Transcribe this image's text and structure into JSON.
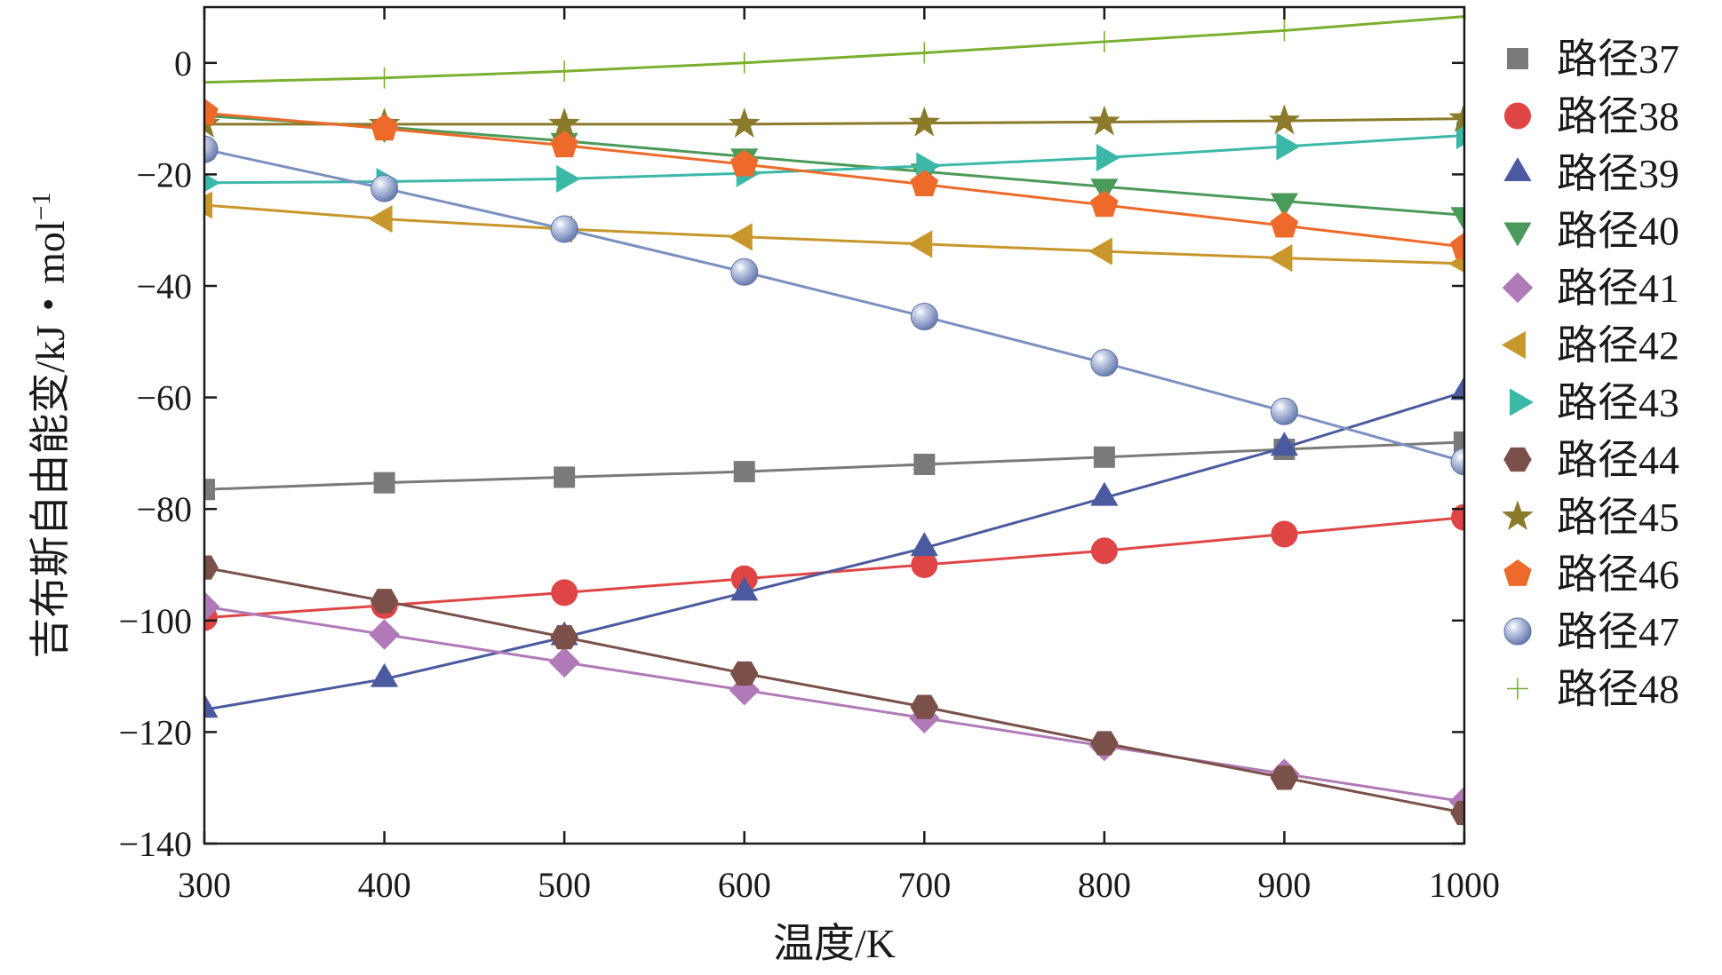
{
  "chart_data": {
    "type": "line",
    "title": "",
    "xlabel": "温度/K",
    "ylabel": "吉布斯自由能变/kJ・mol",
    "ylabel_superscript": "−1",
    "xlim": [
      300,
      1000
    ],
    "ylim": [
      -140,
      10
    ],
    "xticks": [
      300,
      400,
      500,
      600,
      700,
      800,
      900,
      1000
    ],
    "yticks": [
      0,
      -20,
      -40,
      -60,
      -80,
      -100,
      -120,
      -140
    ],
    "ytick_labels": [
      "0",
      "−20",
      "−40",
      "−60",
      "−80",
      "−100",
      "−120",
      "−140"
    ],
    "grid": false,
    "legend_position": "right",
    "x": [
      300,
      400,
      500,
      600,
      700,
      800,
      900,
      1000
    ],
    "series": [
      {
        "name": "路径37",
        "color": "#7a7a7a",
        "marker": "square",
        "values": [
          -76.5,
          -75.3,
          -74.3,
          -73.3,
          -72.0,
          -70.7,
          -69.3,
          -68.0
        ]
      },
      {
        "name": "路径38",
        "color": "#e04545",
        "marker": "circle",
        "values": [
          -99.5,
          -97.3,
          -95.0,
          -92.5,
          -90.0,
          -87.5,
          -84.5,
          -81.5
        ]
      },
      {
        "name": "路径39",
        "color": "#4a5aa0",
        "marker": "triangle-up",
        "values": [
          -116.0,
          -110.5,
          -103.0,
          -95.0,
          -87.0,
          -78.0,
          -69.0,
          -59.0
        ]
      },
      {
        "name": "路径40",
        "color": "#4a9a5a",
        "marker": "triangle-down",
        "values": [
          -9.5,
          -11.5,
          -14.0,
          -16.8,
          -19.5,
          -22.2,
          -24.8,
          -27.3
        ]
      },
      {
        "name": "路径41",
        "color": "#b07ab8",
        "marker": "diamond",
        "values": [
          -97.5,
          -102.5,
          -107.5,
          -112.5,
          -117.5,
          -122.5,
          -127.5,
          -132.5
        ]
      },
      {
        "name": "路径42",
        "color": "#c8962a",
        "marker": "triangle-left",
        "values": [
          -25.5,
          -28.0,
          -29.8,
          -31.2,
          -32.5,
          -33.8,
          -35.0,
          -36.0
        ]
      },
      {
        "name": "路径43",
        "color": "#3cb8a8",
        "marker": "triangle-right",
        "values": [
          -21.5,
          -21.3,
          -20.8,
          -19.8,
          -18.5,
          -17.0,
          -15.0,
          -13.0
        ]
      },
      {
        "name": "路径44",
        "color": "#7a5048",
        "marker": "hexagon",
        "values": [
          -90.5,
          -96.5,
          -103.0,
          -109.5,
          -115.5,
          -122.0,
          -128.2,
          -134.5
        ]
      },
      {
        "name": "路径45",
        "color": "#8a7a2a",
        "marker": "star",
        "values": [
          -11.0,
          -11.0,
          -11.0,
          -11.0,
          -10.8,
          -10.6,
          -10.4,
          -10.0
        ]
      },
      {
        "name": "路径46",
        "color": "#ee6a2a",
        "marker": "pentagon",
        "values": [
          -9.0,
          -11.8,
          -14.8,
          -18.2,
          -21.8,
          -25.5,
          -29.2,
          -33.0
        ]
      },
      {
        "name": "路径47",
        "color": "#7a90c0",
        "marker": "sphere",
        "values": [
          -15.5,
          -22.5,
          -29.8,
          -37.5,
          -45.5,
          -53.8,
          -62.5,
          -71.5
        ]
      },
      {
        "name": "路径48",
        "color": "#7ab030",
        "marker": "plus",
        "values": [
          -3.5,
          -2.7,
          -1.5,
          0.0,
          1.8,
          3.8,
          5.8,
          8.3
        ]
      }
    ]
  }
}
